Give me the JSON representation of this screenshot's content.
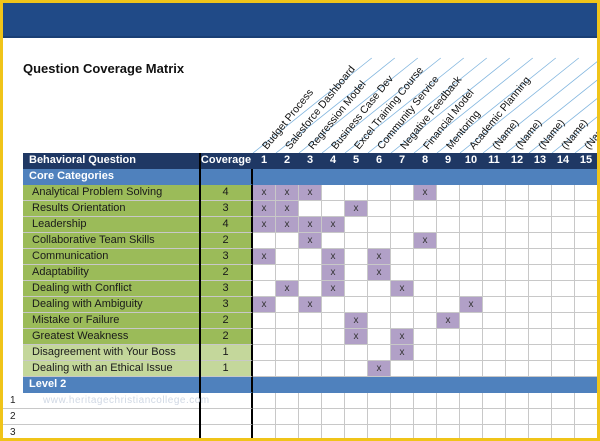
{
  "header": {
    "title": "Question Coverage Matrix"
  },
  "columns": {
    "question_header": "Behavioral Question",
    "coverage_header": "Coverage",
    "numbers": [
      "1",
      "2",
      "3",
      "4",
      "5",
      "6",
      "7",
      "8",
      "9",
      "10",
      "11",
      "12",
      "13",
      "14",
      "15"
    ],
    "topics": [
      "Budget Process",
      "Salesforce Dashboard",
      "Regression Model",
      "Business Case Dev",
      "Excel Training Course",
      "Community Service",
      "Negative Feedback",
      "Financial Model",
      "Mentoring",
      "Academic Planning",
      "(Name)",
      "(Name)",
      "(Name)",
      "(Name)",
      "(Name)"
    ]
  },
  "sections": {
    "core": "Core Categories",
    "level2": "Level 2"
  },
  "mark_symbol": "x",
  "questions": [
    {
      "name": "Analytical Problem Solving",
      "coverage": "4",
      "marks": [
        1,
        2,
        3,
        8
      ],
      "shade": "green"
    },
    {
      "name": "Results Orientation",
      "coverage": "3",
      "marks": [
        1,
        2,
        5
      ],
      "shade": "green"
    },
    {
      "name": "Leadership",
      "coverage": "4",
      "marks": [
        1,
        2,
        3,
        4
      ],
      "shade": "green"
    },
    {
      "name": "Collaborative Team Skills",
      "coverage": "2",
      "marks": [
        3,
        8
      ],
      "shade": "green"
    },
    {
      "name": "Communication",
      "coverage": "3",
      "marks": [
        1,
        4,
        6
      ],
      "shade": "green"
    },
    {
      "name": "Adaptability",
      "coverage": "2",
      "marks": [
        4,
        6
      ],
      "shade": "green"
    },
    {
      "name": "Dealing with Conflict",
      "coverage": "3",
      "marks": [
        2,
        4,
        7
      ],
      "shade": "green"
    },
    {
      "name": "Dealing with Ambiguity",
      "coverage": "3",
      "marks": [
        1,
        3,
        10
      ],
      "shade": "green"
    },
    {
      "name": "Mistake or Failure",
      "coverage": "2",
      "marks": [
        5,
        9
      ],
      "shade": "green"
    },
    {
      "name": "Greatest Weakness",
      "coverage": "2",
      "marks": [
        5,
        7
      ],
      "shade": "green"
    },
    {
      "name": "Disagreement with Your Boss",
      "coverage": "1",
      "marks": [
        7
      ],
      "shade": "light"
    },
    {
      "name": "Dealing with an Ethical Issue",
      "coverage": "1",
      "marks": [
        6
      ],
      "shade": "light"
    }
  ],
  "level2_rows": [
    "1",
    "2",
    "3"
  ],
  "watermark": "www.heritagechristiancollege.com",
  "colors": {
    "topbar": "#204a87",
    "header_row": "#1f3864",
    "section_row": "#4f81bd",
    "question_green": "#9bbb59",
    "question_light": "#c4d79b",
    "mark_fill": "#b1a0c7",
    "frame_border": "#f0c419"
  }
}
